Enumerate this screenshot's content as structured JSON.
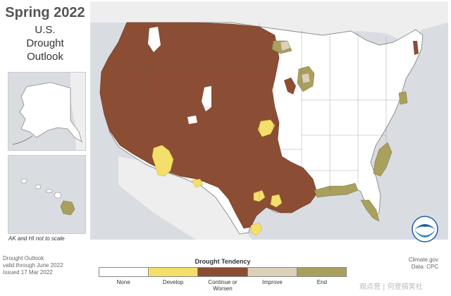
{
  "header": {
    "title": "Spring 2022",
    "subtitle": "U.S.\nDrought\nOutlook"
  },
  "insets": {
    "note": "AK and HI not to scale"
  },
  "footer": {
    "product_line1": "Drought Outlook",
    "product_line2": "valid through June 2022",
    "product_line3": "Issued 17 Mar 2022",
    "source_line1": "Climate.gov",
    "source_line2": "Data: CPC"
  },
  "legend": {
    "title": "Drought Tendency",
    "items": [
      {
        "label": "None",
        "color": "#ffffff"
      },
      {
        "label": "Develop",
        "color": "#f4df6b"
      },
      {
        "label": "Continue or\nWorsen",
        "color": "#8b4d33"
      },
      {
        "label": "Improve",
        "color": "#ddd0b8"
      },
      {
        "label": "End",
        "color": "#a8a05c"
      }
    ]
  },
  "logo": {
    "icon": "noaa-logo-icon"
  },
  "watermark": {
    "text": "观点营 | 何登搞笑社"
  },
  "colors": {
    "land": "#ffffff",
    "water": "#d9dde2",
    "border": "#999999"
  }
}
